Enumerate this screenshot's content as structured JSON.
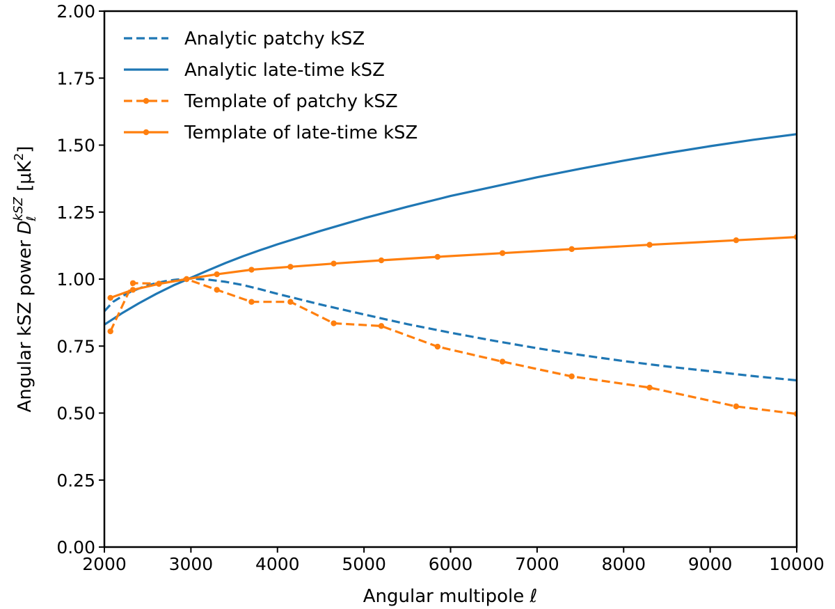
{
  "chart_data": {
    "type": "line",
    "xlabel": "Angular multipole ℓ",
    "ylabel": "Angular kSZ power D_ℓ^kSZ [μK²]",
    "ylabel_parts": {
      "prefix": "Angular kSZ power ",
      "symbol": "D",
      "subscript": "ℓ",
      "superscript": "kSZ",
      "unit_open": " [μK",
      "unit_power": "2",
      "unit_close": "]"
    },
    "xlim": [
      2000,
      10000
    ],
    "ylim": [
      0.0,
      2.0
    ],
    "xticks": [
      2000,
      3000,
      4000,
      5000,
      6000,
      7000,
      8000,
      9000,
      10000
    ],
    "xtick_labels": [
      "2000",
      "3000",
      "4000",
      "5000",
      "6000",
      "7000",
      "8000",
      "9000",
      "10000"
    ],
    "yticks": [
      0.0,
      0.25,
      0.5,
      0.75,
      1.0,
      1.25,
      1.5,
      1.75,
      2.0
    ],
    "ytick_labels": [
      "0.00",
      "0.25",
      "0.50",
      "0.75",
      "1.00",
      "1.25",
      "1.50",
      "1.75",
      "2.00"
    ],
    "grid": false,
    "legend_position": "top-left",
    "colors": {
      "blue": "#1f77b4",
      "orange": "#ff7f0e"
    },
    "series": [
      {
        "name": "Analytic patchy kSZ",
        "color": "#1f77b4",
        "style": "dashed",
        "markers": false,
        "x": [
          2000,
          2100,
          2200,
          2300,
          2400,
          2500,
          2600,
          2700,
          2800,
          2900,
          3000,
          3100,
          3200,
          3400,
          3600,
          3800,
          4000,
          4500,
          5000,
          5500,
          6000,
          6500,
          7000,
          7500,
          8000,
          8500,
          9000,
          9500,
          10000
        ],
        "y": [
          0.88,
          0.915,
          0.935,
          0.952,
          0.965,
          0.976,
          0.985,
          0.992,
          0.997,
          1.0,
          1.002,
          1.0,
          0.998,
          0.99,
          0.978,
          0.962,
          0.945,
          0.905,
          0.868,
          0.832,
          0.8,
          0.77,
          0.742,
          0.717,
          0.694,
          0.674,
          0.656,
          0.638,
          0.622
        ]
      },
      {
        "name": "Analytic late-time kSZ",
        "color": "#1f77b4",
        "style": "solid",
        "markers": false,
        "x": [
          2000,
          2200,
          2400,
          2600,
          2800,
          3000,
          3200,
          3400,
          3600,
          3800,
          4000,
          4500,
          5000,
          5500,
          6000,
          6500,
          7000,
          7500,
          8000,
          8500,
          9000,
          9500,
          10000
        ],
        "y": [
          0.83,
          0.872,
          0.91,
          0.945,
          0.977,
          1.005,
          1.033,
          1.06,
          1.085,
          1.108,
          1.13,
          1.18,
          1.227,
          1.27,
          1.31,
          1.345,
          1.38,
          1.412,
          1.442,
          1.47,
          1.496,
          1.52,
          1.541
        ]
      },
      {
        "name": "Template of patchy kSZ",
        "color": "#ff7f0e",
        "style": "dashed",
        "markers": true,
        "x": [
          2070,
          2330,
          2630,
          2950,
          3300,
          3700,
          4150,
          4650,
          5200,
          5850,
          6600,
          7400,
          8300,
          9300,
          10000
        ],
        "y": [
          0.805,
          0.985,
          0.983,
          1.0,
          0.96,
          0.915,
          0.915,
          0.835,
          0.825,
          0.748,
          0.692,
          0.637,
          0.595,
          0.525,
          0.497
        ]
      },
      {
        "name": "Template of late-time kSZ",
        "color": "#ff7f0e",
        "style": "solid",
        "markers": true,
        "x": [
          2070,
          2330,
          2630,
          2950,
          3300,
          3700,
          4150,
          4650,
          5200,
          5850,
          6600,
          7400,
          8300,
          9300,
          10000
        ],
        "y": [
          0.93,
          0.96,
          0.982,
          1.0,
          1.018,
          1.035,
          1.046,
          1.058,
          1.07,
          1.083,
          1.097,
          1.112,
          1.128,
          1.145,
          1.157
        ]
      }
    ]
  }
}
